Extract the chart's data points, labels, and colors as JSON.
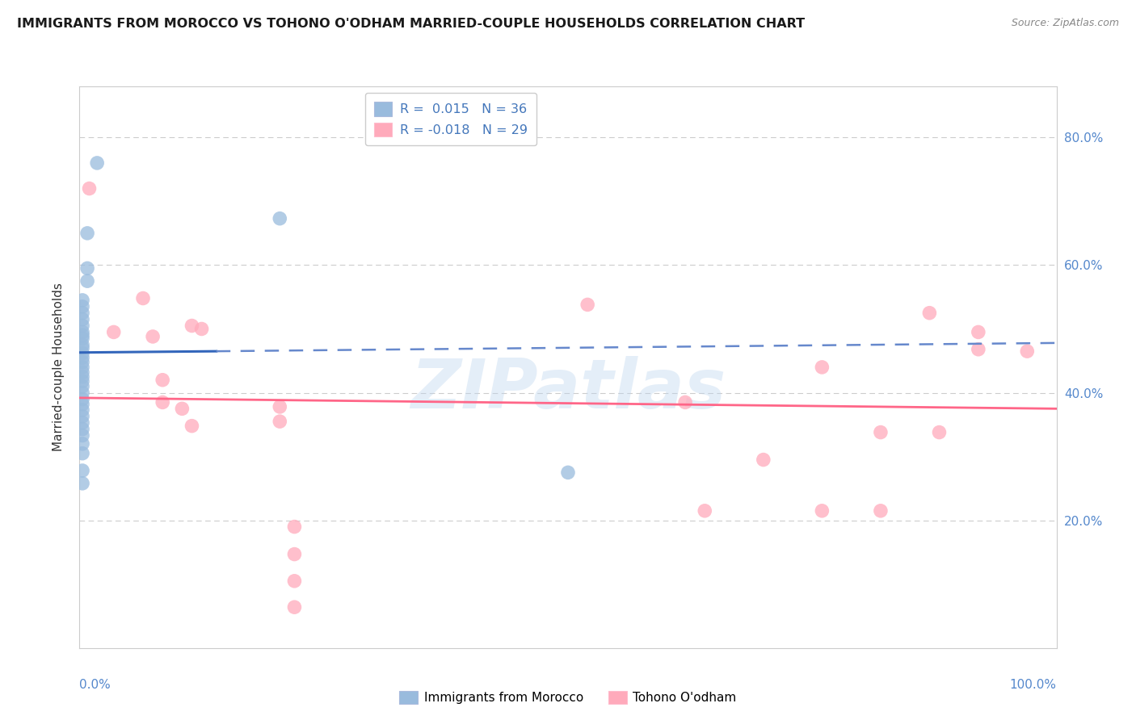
{
  "title": "IMMIGRANTS FROM MOROCCO VS TOHONO O'ODHAM MARRIED-COUPLE HOUSEHOLDS CORRELATION CHART",
  "source": "Source: ZipAtlas.com",
  "ylabel": "Married-couple Households",
  "xlim": [
    0.0,
    1.0
  ],
  "ylim": [
    0.0,
    0.88
  ],
  "watermark": "ZIPatlas",
  "blue_color": "#99BBDD",
  "pink_color": "#FFAABB",
  "blue_line_solid_color": "#3366BB",
  "blue_line_dash_color": "#6688CC",
  "pink_line_color": "#FF6688",
  "grid_color": "#CCCCCC",
  "background_color": "#FFFFFF",
  "blue_scatter": [
    [
      0.018,
      0.76
    ],
    [
      0.008,
      0.65
    ],
    [
      0.008,
      0.595
    ],
    [
      0.008,
      0.575
    ],
    [
      0.003,
      0.545
    ],
    [
      0.003,
      0.535
    ],
    [
      0.003,
      0.525
    ],
    [
      0.003,
      0.515
    ],
    [
      0.003,
      0.505
    ],
    [
      0.003,
      0.495
    ],
    [
      0.003,
      0.485
    ],
    [
      0.003,
      0.475
    ],
    [
      0.003,
      0.47
    ],
    [
      0.003,
      0.462
    ],
    [
      0.003,
      0.455
    ],
    [
      0.003,
      0.448
    ],
    [
      0.003,
      0.44
    ],
    [
      0.003,
      0.432
    ],
    [
      0.003,
      0.425
    ],
    [
      0.003,
      0.418
    ],
    [
      0.003,
      0.41
    ],
    [
      0.003,
      0.4
    ],
    [
      0.003,
      0.39
    ],
    [
      0.003,
      0.382
    ],
    [
      0.003,
      0.373
    ],
    [
      0.003,
      0.363
    ],
    [
      0.003,
      0.353
    ],
    [
      0.003,
      0.343
    ],
    [
      0.003,
      0.333
    ],
    [
      0.003,
      0.305
    ],
    [
      0.003,
      0.278
    ],
    [
      0.003,
      0.258
    ],
    [
      0.205,
      0.673
    ],
    [
      0.003,
      0.32
    ],
    [
      0.003,
      0.49
    ],
    [
      0.5,
      0.275
    ]
  ],
  "pink_scatter": [
    [
      0.01,
      0.72
    ],
    [
      0.035,
      0.495
    ],
    [
      0.065,
      0.548
    ],
    [
      0.075,
      0.488
    ],
    [
      0.105,
      0.375
    ],
    [
      0.115,
      0.348
    ],
    [
      0.115,
      0.505
    ],
    [
      0.125,
      0.5
    ],
    [
      0.085,
      0.42
    ],
    [
      0.085,
      0.385
    ],
    [
      0.22,
      0.19
    ],
    [
      0.22,
      0.147
    ],
    [
      0.22,
      0.105
    ],
    [
      0.22,
      0.064
    ],
    [
      0.205,
      0.378
    ],
    [
      0.205,
      0.355
    ],
    [
      0.52,
      0.538
    ],
    [
      0.62,
      0.385
    ],
    [
      0.64,
      0.215
    ],
    [
      0.7,
      0.295
    ],
    [
      0.76,
      0.44
    ],
    [
      0.76,
      0.215
    ],
    [
      0.82,
      0.338
    ],
    [
      0.82,
      0.215
    ],
    [
      0.87,
      0.525
    ],
    [
      0.88,
      0.338
    ],
    [
      0.92,
      0.468
    ],
    [
      0.92,
      0.495
    ],
    [
      0.97,
      0.465
    ]
  ],
  "blue_solid_line": [
    [
      0.0,
      0.463
    ],
    [
      0.14,
      0.465
    ]
  ],
  "blue_dash_line": [
    [
      0.14,
      0.465
    ],
    [
      1.0,
      0.478
    ]
  ],
  "pink_line": [
    [
      0.0,
      0.392
    ],
    [
      1.0,
      0.375
    ]
  ],
  "y_ticks": [
    0.0,
    0.2,
    0.4,
    0.6,
    0.8
  ],
  "x_ticks": [
    0.0,
    0.25,
    0.5,
    0.75,
    1.0
  ],
  "legend1_label": "R =  0.015   N = 36",
  "legend2_label": "R = -0.018   N = 29",
  "bottom_legend1": "Immigrants from Morocco",
  "bottom_legend2": "Tohono O'odham"
}
